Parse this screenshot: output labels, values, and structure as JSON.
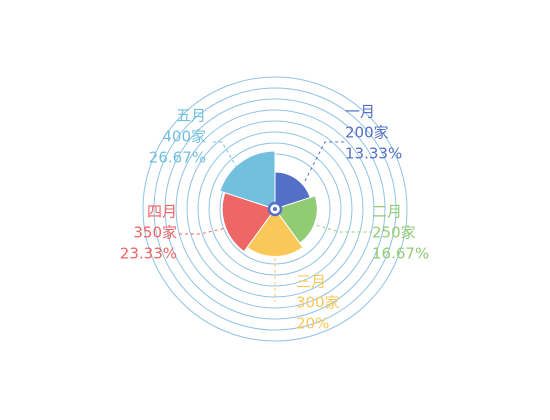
{
  "chart_data": {
    "type": "pie",
    "variant": "rose",
    "unit": "家",
    "start": "top",
    "direction": "clockwise",
    "colors": [
      "#5470c6",
      "#91cc75",
      "#fac858",
      "#ee6666",
      "#73c0de"
    ],
    "ring_color": "#8fc3e6",
    "ring_count": 8,
    "center_marker_color": "#5470c6",
    "slices": [
      {
        "name": "一月",
        "value": 200,
        "value_text": "200家",
        "percent": 13.33,
        "percent_text": "13.33%",
        "color": "#5470c6"
      },
      {
        "name": "二月",
        "value": 250,
        "value_text": "250家",
        "percent": 16.67,
        "percent_text": "16.67%",
        "color": "#91cc75"
      },
      {
        "name": "三月",
        "value": 300,
        "value_text": "300家",
        "percent": 20,
        "percent_text": "20%",
        "color": "#fac858"
      },
      {
        "name": "四月",
        "value": 350,
        "value_text": "350家",
        "percent": 23.33,
        "percent_text": "23.33%",
        "color": "#ee6666"
      },
      {
        "name": "五月",
        "value": 400,
        "value_text": "400家",
        "percent": 26.67,
        "percent_text": "26.67%",
        "color": "#73c0de"
      }
    ]
  }
}
